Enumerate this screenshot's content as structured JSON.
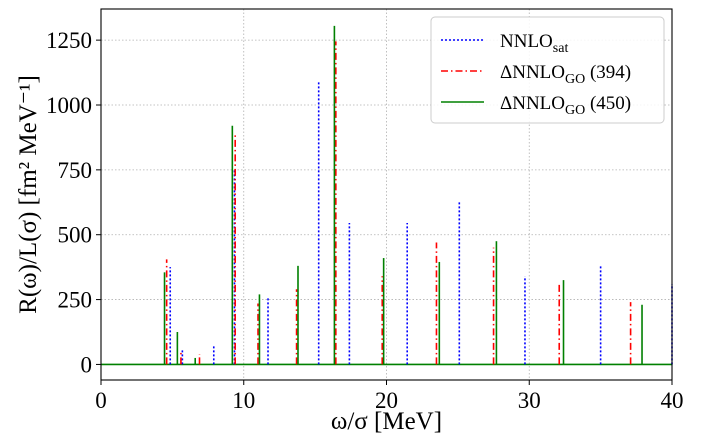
{
  "chart_data": {
    "type": "bar",
    "xlabel": "ω/σ [MeV]",
    "ylabel": "R(ω)/L(σ) [fm² MeV⁻¹]",
    "xlim": [
      0,
      40
    ],
    "ylim": [
      -60,
      1370
    ],
    "xticks": [
      0,
      10,
      20,
      30,
      40
    ],
    "yticks": [
      0,
      250,
      500,
      750,
      1000,
      1250
    ],
    "grid": true,
    "legend_position": "top-right",
    "series": [
      {
        "name": "NNLOsat",
        "legend_main": "NNLO",
        "legend_sub": "sat",
        "legend_suffix": "",
        "color": "#0000ff",
        "linestyle": "dotted",
        "x": [
          4.85,
          5.7,
          7.9,
          9.35,
          11.7,
          15.25,
          17.4,
          21.45,
          25.1,
          29.7,
          35.0,
          40.0
        ],
        "values": [
          375,
          55,
          75,
          750,
          255,
          1095,
          545,
          545,
          625,
          340,
          385,
          310
        ]
      },
      {
        "name": "ΔNNLOGO (394)",
        "legend_main": "ΔNNLO",
        "legend_sub": "GO",
        "legend_suffix": " (394)",
        "color": "#ff0000",
        "linestyle": "dashdot",
        "x": [
          4.6,
          5.6,
          6.9,
          9.4,
          11.0,
          13.7,
          16.45,
          19.7,
          23.5,
          27.5,
          32.1,
          37.1
        ],
        "values": [
          405,
          45,
          40,
          890,
          235,
          290,
          1245,
          340,
          470,
          450,
          315,
          240
        ]
      },
      {
        "name": "ΔNNLOGO (450)",
        "legend_main": "ΔNNLO",
        "legend_sub": "GO",
        "legend_suffix": " (450)",
        "color": "#008000",
        "linestyle": "solid",
        "x": [
          4.45,
          5.35,
          6.6,
          9.2,
          11.1,
          13.8,
          16.35,
          19.8,
          23.7,
          27.7,
          32.4,
          37.9
        ],
        "values": [
          355,
          125,
          25,
          920,
          270,
          380,
          1305,
          410,
          395,
          475,
          325,
          230
        ]
      }
    ]
  }
}
